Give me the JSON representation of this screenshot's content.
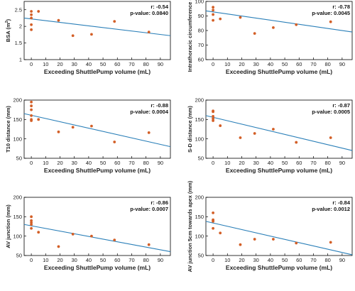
{
  "style": {
    "point_color": "#d35f27",
    "line_color": "#2a7fb8",
    "axis_color": "#000000",
    "box_fill": "#ffffff"
  },
  "chart_data": [
    {
      "type": "scatter",
      "title": "",
      "xlabel": "Exceeding ShuttlePump volume (mL)",
      "ylabel_main": "BSA",
      "ylabel_unit_prefix": " (m",
      "ylabel_unit_sup": "2",
      "ylabel_unit_suffix": ")",
      "xlim": [
        -5,
        97
      ],
      "ylim": [
        1,
        2.75
      ],
      "xticks": [
        0,
        10,
        20,
        30,
        40,
        50,
        60,
        70,
        80,
        90
      ],
      "yticks": [
        1,
        1.5,
        2,
        2.5
      ],
      "ytick_labels": [
        "1",
        "1.5",
        "2",
        "2.5"
      ],
      "points": [
        [
          0,
          2.45
        ],
        [
          0,
          2.35
        ],
        [
          0,
          2.25
        ],
        [
          0,
          2.05
        ],
        [
          0,
          1.9
        ],
        [
          5,
          2.45
        ],
        [
          19,
          2.18
        ],
        [
          29,
          1.72
        ],
        [
          42,
          1.76
        ],
        [
          58,
          2.15
        ],
        [
          82,
          1.83
        ]
      ],
      "regression": [
        [
          -5,
          2.25
        ],
        [
          97,
          1.72
        ]
      ],
      "r_label": "r: -0.54",
      "p_label": "p-value: 0.0840"
    },
    {
      "type": "scatter",
      "title": "",
      "xlabel": "Exceeding ShuttlePump volume (mL)",
      "ylabel_main": "Intrathoracic circumference (cm)",
      "ylabel_unit_prefix": "",
      "ylabel_unit_sup": "",
      "ylabel_unit_suffix": "",
      "xlim": [
        -5,
        97
      ],
      "ylim": [
        60,
        100
      ],
      "xticks": [
        0,
        10,
        20,
        30,
        40,
        50,
        60,
        70,
        80,
        90
      ],
      "yticks": [
        60,
        70,
        80,
        90,
        100
      ],
      "ytick_labels": [
        "60",
        "70",
        "80",
        "90",
        "100"
      ],
      "points": [
        [
          0,
          96
        ],
        [
          0,
          94
        ],
        [
          0,
          91
        ],
        [
          0,
          87
        ],
        [
          5,
          88
        ],
        [
          19,
          89
        ],
        [
          29,
          78
        ],
        [
          42,
          82
        ],
        [
          58,
          84
        ],
        [
          82,
          86
        ]
      ],
      "regression": [
        [
          -5,
          93.5
        ],
        [
          97,
          79
        ]
      ],
      "r_label": "r: -0.78",
      "p_label": "p-value: 0.0045"
    },
    {
      "type": "scatter",
      "title": "",
      "xlabel": "Exceeding ShuttlePump volume (mL)",
      "ylabel_main": "T10 distance (mm)",
      "ylabel_unit_prefix": "",
      "ylabel_unit_sup": "",
      "ylabel_unit_suffix": "",
      "xlim": [
        -5,
        97
      ],
      "ylim": [
        50,
        200
      ],
      "xticks": [
        0,
        10,
        20,
        30,
        40,
        50,
        60,
        70,
        80,
        90
      ],
      "yticks": [
        50,
        100,
        150,
        200
      ],
      "ytick_labels": [
        "50",
        "100",
        "150",
        "200"
      ],
      "points": [
        [
          0,
          195
        ],
        [
          0,
          185
        ],
        [
          0,
          175
        ],
        [
          0,
          160
        ],
        [
          0,
          150
        ],
        [
          0,
          147
        ],
        [
          5,
          150
        ],
        [
          19,
          118
        ],
        [
          29,
          130
        ],
        [
          42,
          133
        ],
        [
          58,
          92
        ],
        [
          82,
          116
        ]
      ],
      "regression": [
        [
          -5,
          165
        ],
        [
          97,
          80
        ]
      ],
      "r_label": "r: -0.88",
      "p_label": "p-value: 0.0004"
    },
    {
      "type": "scatter",
      "title": "",
      "xlabel": "Exceeding ShuttlePump volume (mL)",
      "ylabel_main": "S-D distance (mm)",
      "ylabel_unit_prefix": "",
      "ylabel_unit_sup": "",
      "ylabel_unit_suffix": "",
      "xlim": [
        -5,
        97
      ],
      "ylim": [
        50,
        200
      ],
      "xticks": [
        0,
        10,
        20,
        30,
        40,
        50,
        60,
        70,
        80,
        90
      ],
      "yticks": [
        50,
        100,
        150,
        200
      ],
      "ytick_labels": [
        "50",
        "100",
        "150",
        "200"
      ],
      "points": [
        [
          0,
          172
        ],
        [
          0,
          170
        ],
        [
          0,
          158
        ],
        [
          0,
          152
        ],
        [
          0,
          147
        ],
        [
          5,
          134
        ],
        [
          19,
          103
        ],
        [
          29,
          114
        ],
        [
          42,
          125
        ],
        [
          58,
          91
        ],
        [
          82,
          103
        ]
      ],
      "regression": [
        [
          -5,
          160
        ],
        [
          97,
          70
        ]
      ],
      "r_label": "r: -0.87",
      "p_label": "p-value: 0.0005"
    },
    {
      "type": "scatter",
      "title": "",
      "xlabel": "Exceeding ShuttlePump volume (mL)",
      "ylabel_main": "AV junction (mm)",
      "ylabel_unit_prefix": "",
      "ylabel_unit_sup": "",
      "ylabel_unit_suffix": "",
      "xlim": [
        -5,
        97
      ],
      "ylim": [
        50,
        200
      ],
      "xticks": [
        0,
        10,
        20,
        30,
        40,
        50,
        60,
        70,
        80,
        90
      ],
      "yticks": [
        50,
        100,
        150,
        200
      ],
      "ytick_labels": [
        "50",
        "100",
        "150",
        "200"
      ],
      "points": [
        [
          0,
          150
        ],
        [
          0,
          140
        ],
        [
          0,
          135
        ],
        [
          0,
          130
        ],
        [
          0,
          120
        ],
        [
          5,
          110
        ],
        [
          19,
          73
        ],
        [
          29,
          105
        ],
        [
          42,
          100
        ],
        [
          58,
          90
        ],
        [
          82,
          78
        ]
      ],
      "regression": [
        [
          -5,
          130
        ],
        [
          97,
          60
        ]
      ],
      "r_label": "r: -0.86",
      "p_label": "p-value: 0.0007"
    },
    {
      "type": "scatter",
      "title": "",
      "xlabel": "Exceeding ShuttlePump volume (mL)",
      "ylabel_main": "AV junction 5cm towards apex (mm)",
      "ylabel_unit_prefix": "",
      "ylabel_unit_sup": "",
      "ylabel_unit_suffix": "",
      "xlim": [
        -5,
        97
      ],
      "ylim": [
        50,
        200
      ],
      "xticks": [
        0,
        10,
        20,
        30,
        40,
        50,
        60,
        70,
        80,
        90
      ],
      "yticks": [
        50,
        100,
        150,
        200
      ],
      "ytick_labels": [
        "50",
        "100",
        "150",
        "200"
      ],
      "points": [
        [
          0,
          160
        ],
        [
          0,
          142
        ],
        [
          0,
          140
        ],
        [
          0,
          138
        ],
        [
          0,
          120
        ],
        [
          5,
          108
        ],
        [
          19,
          78
        ],
        [
          29,
          92
        ],
        [
          42,
          92
        ],
        [
          58,
          82
        ],
        [
          82,
          84
        ]
      ],
      "regression": [
        [
          -5,
          138
        ],
        [
          97,
          52
        ]
      ],
      "r_label": "r: -0.84",
      "p_label": "p-value: 0.0012"
    }
  ]
}
